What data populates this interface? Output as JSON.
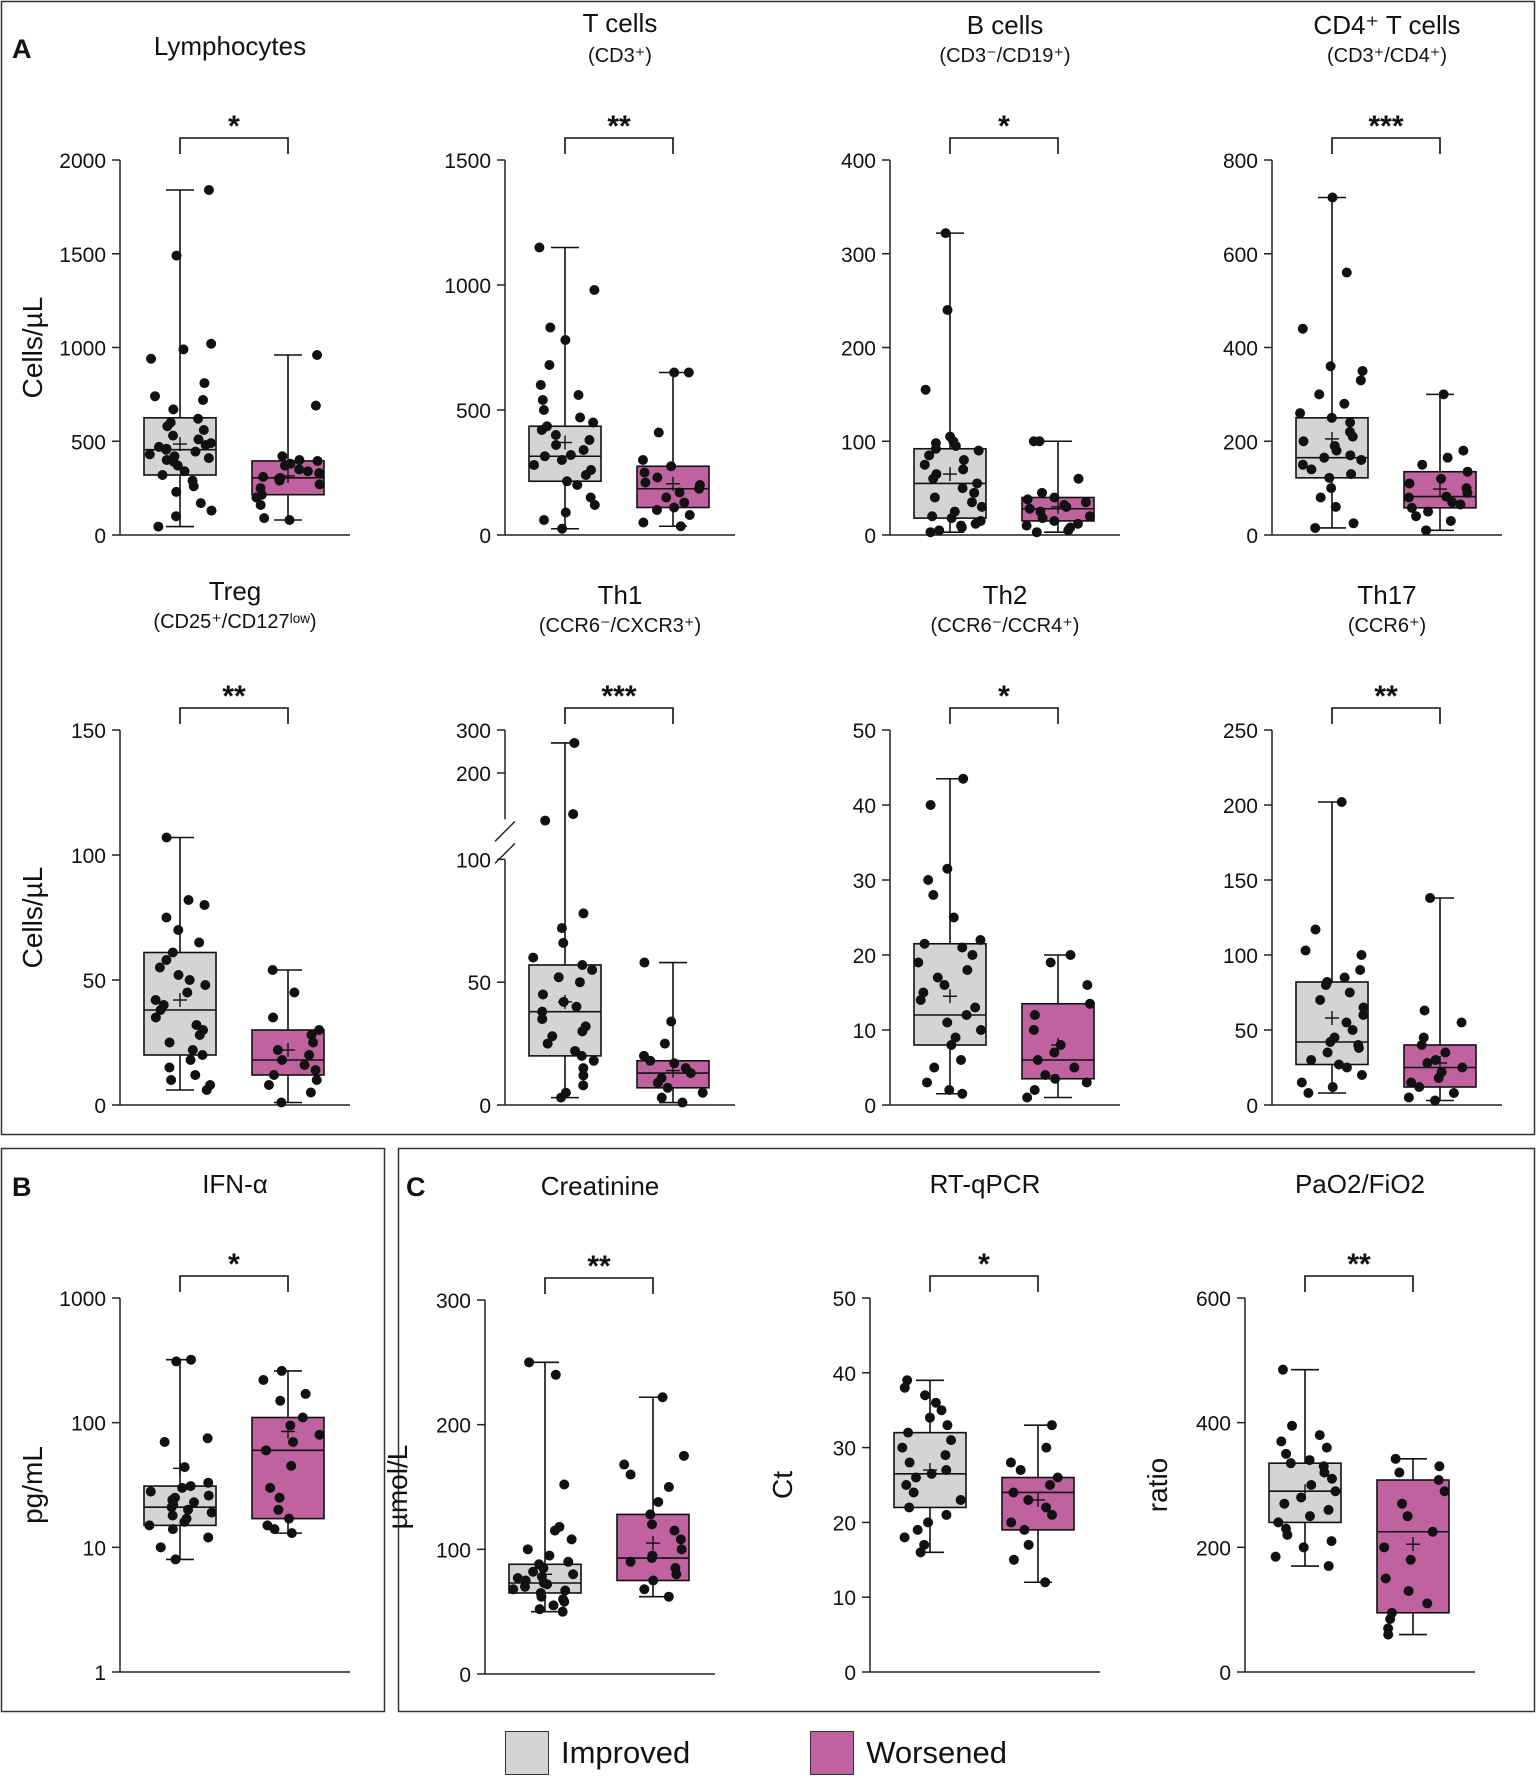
{
  "figure": {
    "panel_labels": {
      "a": "A",
      "b": "B",
      "c": "C"
    },
    "legend": {
      "improved_label": "Improved",
      "worsened_label": "Worsened",
      "improved_color": "#d4d4d4",
      "worsened_color": "#c0629f"
    }
  },
  "chart_data": [
    {
      "type": "boxplot",
      "title": "Lymphocytes",
      "subtitle": "",
      "ylabel": "Cells/µL",
      "scale": "linear",
      "ylim": [
        0,
        2000
      ],
      "yticks": [
        0,
        500,
        1000,
        1500,
        2000
      ],
      "significance": "*",
      "series": [
        {
          "name": "Improved",
          "min": 45,
          "q1": 320,
          "median": 455,
          "q3": 625,
          "max": 1840,
          "mean": 485,
          "points": [
            45,
            100,
            130,
            170,
            230,
            260,
            290,
            320,
            340,
            370,
            390,
            400,
            410,
            420,
            430,
            445,
            455,
            460,
            470,
            480,
            490,
            510,
            530,
            560,
            580,
            600,
            620,
            670,
            720,
            740,
            810,
            940,
            990,
            1020,
            1490,
            1840
          ]
        },
        {
          "name": "Worsened",
          "min": 80,
          "q1": 215,
          "median": 305,
          "q3": 395,
          "max": 960,
          "mean": 315,
          "points": [
            80,
            90,
            160,
            200,
            215,
            250,
            270,
            290,
            300,
            305,
            310,
            330,
            340,
            350,
            370,
            380,
            395,
            400,
            420,
            690,
            960
          ]
        }
      ]
    },
    {
      "type": "boxplot",
      "title": "T cells",
      "subtitle": "(CD3⁺)",
      "ylabel": "",
      "scale": "linear",
      "ylim": [
        0,
        1500
      ],
      "yticks": [
        0,
        500,
        1000,
        1500
      ],
      "significance": "**",
      "series": [
        {
          "name": "Improved",
          "min": 25,
          "q1": 215,
          "median": 315,
          "q3": 435,
          "max": 1150,
          "mean": 370,
          "points": [
            25,
            60,
            90,
            120,
            150,
            200,
            215,
            240,
            260,
            280,
            300,
            315,
            320,
            340,
            360,
            380,
            400,
            420,
            435,
            450,
            470,
            500,
            540,
            560,
            600,
            680,
            780,
            830,
            980,
            1150
          ]
        },
        {
          "name": "Worsened",
          "min": 35,
          "q1": 110,
          "median": 185,
          "q3": 275,
          "max": 650,
          "mean": 205,
          "points": [
            35,
            50,
            80,
            100,
            110,
            130,
            150,
            170,
            185,
            200,
            210,
            230,
            250,
            275,
            300,
            410,
            650,
            650
          ]
        }
      ]
    },
    {
      "type": "boxplot",
      "title": "B cells",
      "subtitle": "(CD3⁻/CD19⁺)",
      "ylabel": "",
      "scale": "linear",
      "ylim": [
        0,
        400
      ],
      "yticks": [
        0,
        100,
        200,
        300,
        400
      ],
      "significance": "*",
      "series": [
        {
          "name": "Improved",
          "min": 3,
          "q1": 18,
          "median": 55,
          "q3": 92,
          "max": 322,
          "mean": 65,
          "points": [
            3,
            5,
            8,
            10,
            12,
            15,
            18,
            20,
            25,
            30,
            35,
            40,
            45,
            50,
            55,
            60,
            65,
            70,
            75,
            80,
            85,
            90,
            92,
            95,
            98,
            100,
            105,
            155,
            240,
            322
          ]
        },
        {
          "name": "Worsened",
          "min": 3,
          "q1": 15,
          "median": 28,
          "q3": 40,
          "max": 100,
          "mean": 30,
          "points": [
            3,
            5,
            8,
            10,
            12,
            15,
            18,
            20,
            25,
            28,
            30,
            32,
            35,
            38,
            40,
            45,
            60,
            100,
            100
          ]
        }
      ]
    },
    {
      "type": "boxplot",
      "title": "CD4⁺ T cells",
      "subtitle": "(CD3⁺/CD4⁺)",
      "ylabel": "",
      "scale": "linear",
      "ylim": [
        0,
        800
      ],
      "yticks": [
        0,
        200,
        400,
        600,
        800
      ],
      "significance": "***",
      "series": [
        {
          "name": "Improved",
          "min": 15,
          "q1": 122,
          "median": 165,
          "q3": 250,
          "max": 720,
          "mean": 205,
          "points": [
            15,
            25,
            60,
            80,
            100,
            122,
            130,
            140,
            150,
            160,
            165,
            170,
            180,
            190,
            200,
            210,
            220,
            240,
            250,
            260,
            280,
            300,
            330,
            350,
            360,
            440,
            560,
            720
          ]
        },
        {
          "name": "Worsened",
          "min": 10,
          "q1": 58,
          "median": 82,
          "q3": 135,
          "max": 300,
          "mean": 98,
          "points": [
            10,
            30,
            40,
            50,
            58,
            65,
            70,
            80,
            82,
            90,
            100,
            110,
            120,
            135,
            150,
            165,
            180,
            300
          ]
        }
      ]
    },
    {
      "type": "boxplot",
      "title": "Treg",
      "subtitle": "(CD25⁺/CD127ˡᵒʷ)",
      "ylabel": "Cells/µL",
      "scale": "linear",
      "ylim": [
        0,
        150
      ],
      "yticks": [
        0,
        50,
        100,
        150
      ],
      "significance": "**",
      "series": [
        {
          "name": "Improved",
          "min": 6,
          "q1": 20,
          "median": 38,
          "q3": 61,
          "max": 107,
          "mean": 42,
          "points": [
            6,
            8,
            10,
            12,
            15,
            18,
            20,
            22,
            25,
            28,
            30,
            32,
            35,
            38,
            40,
            42,
            45,
            48,
            50,
            52,
            55,
            58,
            61,
            65,
            70,
            75,
            80,
            82,
            107
          ]
        },
        {
          "name": "Worsened",
          "min": 1,
          "q1": 12,
          "median": 18,
          "q3": 30,
          "max": 54,
          "mean": 22,
          "points": [
            1,
            5,
            8,
            10,
            12,
            14,
            16,
            18,
            20,
            22,
            25,
            28,
            30,
            35,
            45,
            54
          ]
        }
      ]
    },
    {
      "type": "boxplot",
      "title": "Th1",
      "subtitle": "(CCR6⁻/CXCR3⁺)",
      "ylabel": "",
      "scale": "broken",
      "ylim": [
        0,
        300
      ],
      "yticks": [
        0,
        50,
        100,
        200,
        300
      ],
      "significance": "***",
      "series": [
        {
          "name": "Improved",
          "min": 3,
          "q1": 20,
          "median": 38,
          "q3": 57,
          "max": 280,
          "mean": 42,
          "points": [
            3,
            5,
            8,
            12,
            15,
            18,
            20,
            22,
            25,
            28,
            30,
            32,
            35,
            38,
            40,
            42,
            45,
            50,
            52,
            55,
            57,
            60,
            66,
            72,
            78,
            160,
            170,
            280
          ]
        },
        {
          "name": "Worsened",
          "min": 1,
          "q1": 7,
          "median": 13,
          "q3": 18,
          "max": 58,
          "mean": 14,
          "points": [
            1,
            3,
            5,
            7,
            9,
            11,
            13,
            15,
            17,
            18,
            20,
            25,
            34,
            58
          ]
        }
      ]
    },
    {
      "type": "boxplot",
      "title": "Th2",
      "subtitle": "(CCR6⁻/CCR4⁺)",
      "ylabel": "",
      "scale": "linear",
      "ylim": [
        0,
        50
      ],
      "yticks": [
        0,
        10,
        20,
        30,
        40,
        50
      ],
      "significance": "*",
      "series": [
        {
          "name": "Improved",
          "min": 1.5,
          "q1": 8,
          "median": 12,
          "q3": 21.5,
          "max": 43.5,
          "mean": 14.5,
          "points": [
            1.5,
            2,
            3,
            5,
            6,
            8,
            9,
            10,
            11,
            12,
            13,
            14,
            15,
            16,
            17,
            18,
            19,
            20,
            21,
            21.5,
            22,
            25,
            28,
            30,
            31.5,
            40,
            43.5
          ]
        },
        {
          "name": "Worsened",
          "min": 1,
          "q1": 3.5,
          "median": 6,
          "q3": 13.5,
          "max": 20,
          "mean": 8,
          "points": [
            1,
            2,
            3,
            3.5,
            4,
            5,
            6,
            7,
            8,
            10,
            12,
            13.5,
            16,
            19,
            20
          ]
        }
      ]
    },
    {
      "type": "boxplot",
      "title": "Th17",
      "subtitle": "(CCR6⁺)",
      "ylabel": "",
      "scale": "linear",
      "ylim": [
        0,
        250
      ],
      "yticks": [
        0,
        50,
        100,
        150,
        200,
        250
      ],
      "significance": "**",
      "series": [
        {
          "name": "Improved",
          "min": 8,
          "q1": 27,
          "median": 42,
          "q3": 82,
          "max": 202,
          "mean": 58,
          "points": [
            8,
            12,
            15,
            20,
            25,
            27,
            30,
            35,
            38,
            40,
            42,
            45,
            50,
            55,
            60,
            65,
            70,
            75,
            80,
            82,
            85,
            90,
            100,
            103,
            117,
            202
          ]
        },
        {
          "name": "Worsened",
          "min": 3,
          "q1": 12,
          "median": 25,
          "q3": 40,
          "max": 138,
          "mean": 28,
          "points": [
            3,
            5,
            8,
            12,
            15,
            18,
            22,
            25,
            28,
            30,
            35,
            40,
            45,
            55,
            63,
            138
          ]
        }
      ]
    },
    {
      "type": "boxplot",
      "title": "IFN-α",
      "subtitle": "",
      "ylabel": "pg/mL",
      "scale": "log",
      "ylim": [
        1,
        1000
      ],
      "yticks": [
        1,
        10,
        100,
        1000
      ],
      "significance": "*",
      "series": [
        {
          "name": "Improved",
          "min": 8,
          "q1": 15,
          "median": 21,
          "q3": 31,
          "max": 320,
          "mean": 43,
          "points": [
            8,
            10,
            12,
            14,
            15,
            16,
            17,
            18,
            19,
            20,
            21,
            22,
            23,
            24,
            25,
            26,
            28,
            30,
            31,
            33,
            44,
            70,
            75,
            310,
            320
          ]
        },
        {
          "name": "Worsened",
          "min": 13,
          "q1": 17,
          "median": 60,
          "q3": 110,
          "max": 260,
          "mean": 85,
          "points": [
            13,
            14,
            15,
            17,
            20,
            25,
            30,
            45,
            60,
            70,
            80,
            95,
            110,
            150,
            170,
            220,
            260
          ]
        }
      ]
    },
    {
      "type": "boxplot",
      "title": "Creatinine",
      "subtitle": "",
      "ylabel": "µmol/L",
      "scale": "linear",
      "ylim": [
        0,
        300
      ],
      "yticks": [
        0,
        100,
        200,
        300
      ],
      "significance": "**",
      "series": [
        {
          "name": "Improved",
          "min": 50,
          "q1": 65,
          "median": 73,
          "q3": 88,
          "max": 250,
          "mean": 80,
          "points": [
            50,
            52,
            55,
            58,
            60,
            62,
            65,
            67,
            68,
            70,
            72,
            73,
            75,
            77,
            78,
            80,
            82,
            85,
            88,
            90,
            95,
            100,
            108,
            115,
            118,
            152,
            240,
            250
          ]
        },
        {
          "name": "Worsened",
          "min": 62,
          "q1": 75,
          "median": 93,
          "q3": 128,
          "max": 222,
          "mean": 105,
          "points": [
            62,
            68,
            75,
            80,
            85,
            90,
            93,
            95,
            100,
            108,
            115,
            120,
            128,
            138,
            150,
            160,
            168,
            175,
            222
          ]
        }
      ]
    },
    {
      "type": "boxplot",
      "title": "RT-qPCR",
      "subtitle": "",
      "ylabel": "Ct",
      "scale": "linear",
      "ylim": [
        0,
        50
      ],
      "yticks": [
        0,
        10,
        20,
        30,
        40,
        50
      ],
      "significance": "*",
      "series": [
        {
          "name": "Improved",
          "min": 16,
          "q1": 22,
          "median": 26.5,
          "q3": 32,
          "max": 39,
          "mean": 27,
          "points": [
            16,
            17,
            18,
            19,
            20,
            21,
            22,
            23,
            24,
            25,
            26,
            26.5,
            27,
            28,
            29,
            30,
            31,
            32,
            33,
            34,
            35,
            36,
            37,
            38,
            39
          ]
        },
        {
          "name": "Worsened",
          "min": 12,
          "q1": 19,
          "median": 24,
          "q3": 26,
          "max": 33,
          "mean": 23,
          "points": [
            12,
            15,
            17,
            19,
            20,
            21,
            22,
            23,
            24,
            25,
            26,
            27,
            28,
            30,
            33
          ]
        }
      ]
    },
    {
      "type": "boxplot",
      "title": "PaO2/FiO2",
      "subtitle": "",
      "ylabel": "ratio",
      "scale": "linear",
      "ylim": [
        0,
        600
      ],
      "yticks": [
        0,
        200,
        400,
        600
      ],
      "significance": "**",
      "series": [
        {
          "name": "Improved",
          "min": 170,
          "q1": 240,
          "median": 290,
          "q3": 335,
          "max": 485,
          "mean": 290,
          "points": [
            170,
            185,
            200,
            210,
            220,
            230,
            240,
            250,
            260,
            270,
            280,
            290,
            300,
            310,
            320,
            330,
            335,
            340,
            350,
            360,
            370,
            380,
            395,
            485
          ]
        },
        {
          "name": "Worsened",
          "min": 60,
          "q1": 95,
          "median": 225,
          "q3": 308,
          "max": 342,
          "mean": 205,
          "points": [
            60,
            70,
            85,
            95,
            110,
            130,
            150,
            180,
            200,
            225,
            250,
            270,
            290,
            308,
            320,
            330,
            342
          ]
        }
      ]
    }
  ]
}
